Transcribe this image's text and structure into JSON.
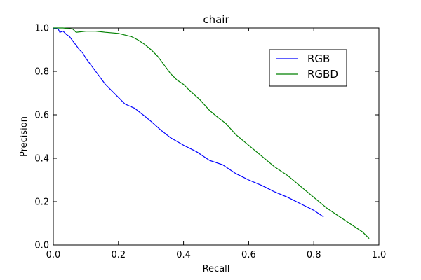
{
  "chart_data": {
    "type": "line",
    "title": "chair",
    "xlabel": "Recall",
    "ylabel": "Precision",
    "xlim": [
      0.0,
      1.0
    ],
    "ylim": [
      0.0,
      1.0
    ],
    "xticks": [
      "0.0",
      "0.2",
      "0.4",
      "0.6",
      "0.8",
      "1.0"
    ],
    "yticks": [
      "0.0",
      "0.2",
      "0.4",
      "0.6",
      "0.8",
      "1.0"
    ],
    "grid": false,
    "legend_position": "upper-right",
    "series": [
      {
        "name": "RGB",
        "color": "#0000ff",
        "x": [
          0.0,
          0.015,
          0.02,
          0.03,
          0.04,
          0.05,
          0.06,
          0.07,
          0.08,
          0.09,
          0.1,
          0.12,
          0.14,
          0.16,
          0.18,
          0.2,
          0.22,
          0.25,
          0.28,
          0.3,
          0.33,
          0.36,
          0.4,
          0.44,
          0.48,
          0.52,
          0.56,
          0.6,
          0.64,
          0.68,
          0.72,
          0.76,
          0.8,
          0.83
        ],
        "y": [
          1.0,
          0.995,
          0.98,
          0.985,
          0.97,
          0.96,
          0.94,
          0.92,
          0.9,
          0.885,
          0.86,
          0.82,
          0.78,
          0.74,
          0.71,
          0.68,
          0.65,
          0.63,
          0.595,
          0.57,
          0.53,
          0.495,
          0.46,
          0.43,
          0.39,
          0.37,
          0.33,
          0.3,
          0.275,
          0.245,
          0.22,
          0.19,
          0.16,
          0.13
        ]
      },
      {
        "name": "RGBD",
        "color": "#008000",
        "x": [
          0.0,
          0.03,
          0.06,
          0.07,
          0.1,
          0.13,
          0.16,
          0.2,
          0.24,
          0.26,
          0.28,
          0.3,
          0.32,
          0.34,
          0.36,
          0.38,
          0.4,
          0.42,
          0.45,
          0.48,
          0.5,
          0.53,
          0.56,
          0.6,
          0.64,
          0.68,
          0.72,
          0.76,
          0.8,
          0.84,
          0.88,
          0.92,
          0.95,
          0.97
        ],
        "y": [
          1.0,
          1.0,
          0.995,
          0.98,
          0.985,
          0.985,
          0.98,
          0.975,
          0.96,
          0.945,
          0.925,
          0.9,
          0.87,
          0.83,
          0.79,
          0.76,
          0.74,
          0.71,
          0.67,
          0.62,
          0.595,
          0.56,
          0.51,
          0.46,
          0.41,
          0.36,
          0.32,
          0.27,
          0.22,
          0.17,
          0.13,
          0.09,
          0.06,
          0.03
        ]
      }
    ]
  }
}
